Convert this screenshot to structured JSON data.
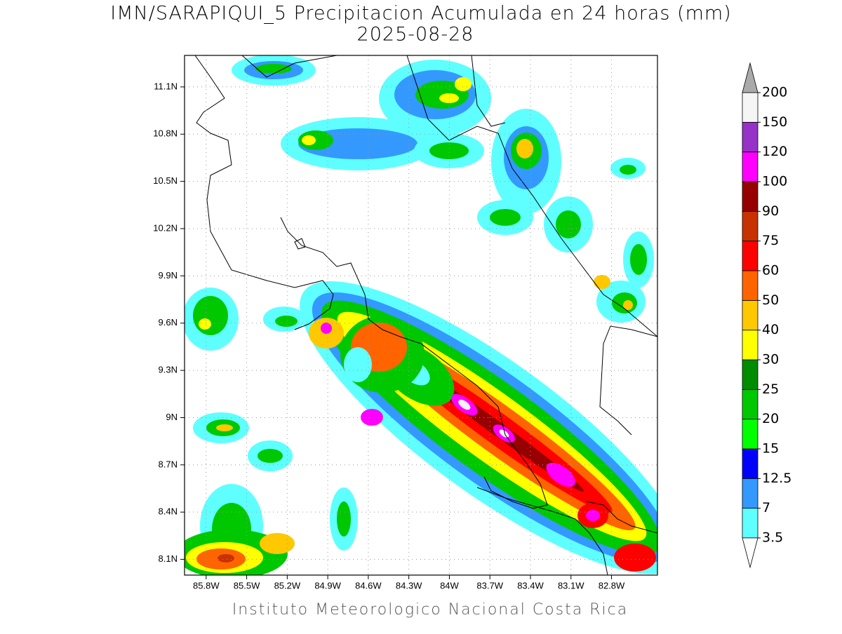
{
  "title": "IMN/SARAPIQUI_5 Precipitacion Acumulada en 24 horas (mm)",
  "subtitle": "2025-08-28",
  "footer": "Instituto Meteorologico Nacional Costa Rica",
  "map": {
    "xlim": [
      -85.96,
      -82.46
    ],
    "ylim": [
      8.0,
      11.3
    ],
    "grid": true,
    "xticks": [
      {
        "value": -85.8,
        "label": "85.8W"
      },
      {
        "value": -85.5,
        "label": "85.5W"
      },
      {
        "value": -85.2,
        "label": "85.2W"
      },
      {
        "value": -84.9,
        "label": "84.9W"
      },
      {
        "value": -84.6,
        "label": "84.6W"
      },
      {
        "value": -84.3,
        "label": "84.3W"
      },
      {
        "value": -84.0,
        "label": "84W"
      },
      {
        "value": -83.7,
        "label": "83.7W"
      },
      {
        "value": -83.4,
        "label": "83.4W"
      },
      {
        "value": -83.1,
        "label": "83.1W"
      },
      {
        "value": -82.8,
        "label": "82.8W"
      }
    ],
    "yticks": [
      {
        "value": 8.1,
        "label": "8.1N"
      },
      {
        "value": 8.4,
        "label": "8.4N"
      },
      {
        "value": 8.7,
        "label": "8.7N"
      },
      {
        "value": 9.0,
        "label": "9N"
      },
      {
        "value": 9.3,
        "label": "9.3N"
      },
      {
        "value": 9.6,
        "label": "9.6N"
      },
      {
        "value": 9.9,
        "label": "9.9N"
      },
      {
        "value": 10.2,
        "label": "10.2N"
      },
      {
        "value": 10.5,
        "label": "10.5N"
      },
      {
        "value": 10.8,
        "label": "10.8N"
      },
      {
        "value": 11.1,
        "label": "11.1N"
      }
    ]
  },
  "colorbar": {
    "levels": [
      3.5,
      7,
      12.5,
      15,
      20,
      25,
      30,
      40,
      50,
      60,
      75,
      90,
      100,
      120,
      150,
      200
    ],
    "colors": [
      "#5fffff",
      "#3399ff",
      "#0000ff",
      "#00ff00",
      "#00c800",
      "#008c00",
      "#ffff00",
      "#ffc800",
      "#ff6400",
      "#ff0000",
      "#c83200",
      "#960000",
      "#ff00ff",
      "#9632c8",
      "#f5f5f5"
    ],
    "under_color": "#ffffff",
    "over_color": "#aaaaaa"
  }
}
